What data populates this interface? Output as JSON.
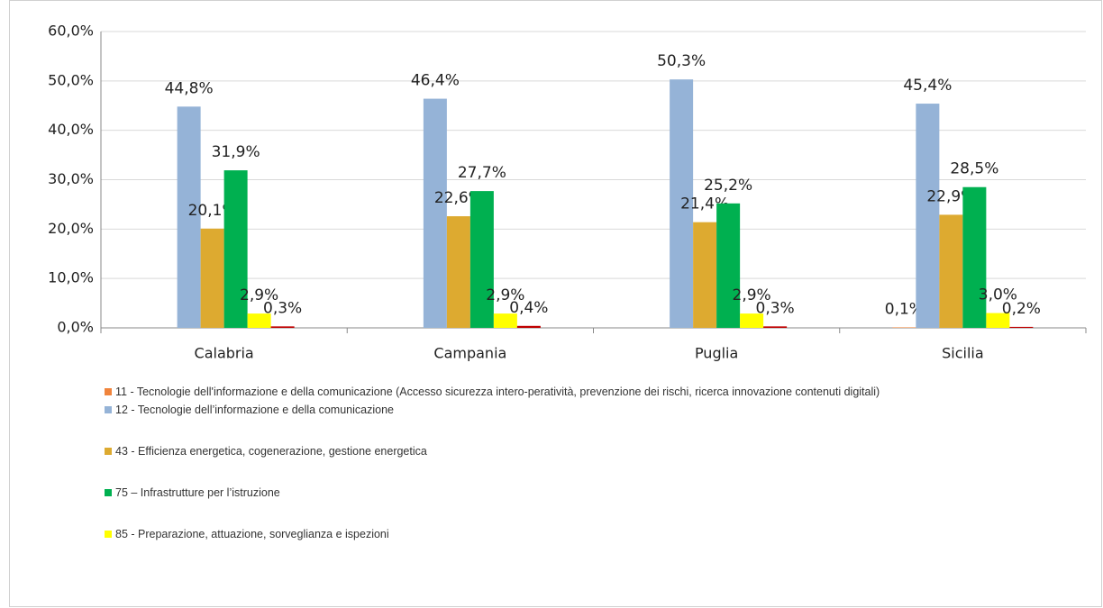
{
  "chart_data": {
    "type": "bar",
    "categories": [
      "Calabria",
      "Campania",
      "Puglia",
      "Sicilia"
    ],
    "series": [
      {
        "name": "11 - Tecnologie dell'informazione e della comunicazione (Accesso sicurezza intero-peratività, prevenzione dei rischi, ricerca innovazione contenuti digitali)",
        "color": "#f0843c",
        "values": [
          null,
          null,
          null,
          0.1
        ],
        "value_labels": [
          null,
          null,
          null,
          "0,1%"
        ]
      },
      {
        "name": "12 - Tecnologie dell’informazione e della comunicazione",
        "color": "#95b3d7",
        "values": [
          44.8,
          46.4,
          50.3,
          45.4
        ],
        "value_labels": [
          "44,8%",
          "46,4%",
          "50,3%",
          "45,4%"
        ]
      },
      {
        "name": "43 - Efficienza energetica, cogenerazione, gestione energetica",
        "color": "#ddaa30",
        "values": [
          20.1,
          22.6,
          21.4,
          22.9
        ],
        "value_labels": [
          "20,1%",
          "22,6%",
          "21,4%",
          "22,9%"
        ]
      },
      {
        "name": "75 – Infrastrutture per l’istruzione",
        "color": "#00b050",
        "values": [
          31.9,
          27.7,
          25.2,
          28.5
        ],
        "value_labels": [
          "31,9%",
          "27,7%",
          "25,2%",
          "28,5%"
        ]
      },
      {
        "name": "85 - Preparazione, attuazione, sorveglianza e ispezioni",
        "color": "#ffff00",
        "values": [
          2.9,
          2.9,
          2.9,
          3.0
        ],
        "value_labels": [
          "2,9%",
          "2,9%",
          "2,9%",
          "3,0%"
        ]
      },
      {
        "color": "#c00000",
        "values": [
          0.3,
          0.4,
          0.3,
          0.2
        ],
        "value_labels": [
          "0,3%",
          "0,4%",
          "0,3%",
          "0,2%"
        ]
      }
    ],
    "ylim": [
      0,
      60
    ],
    "yticks": [
      {
        "value": 0,
        "label": "0,0%"
      },
      {
        "value": 10,
        "label": "10,0%"
      },
      {
        "value": 20,
        "label": "20,0%"
      },
      {
        "value": 30,
        "label": "30,0%"
      },
      {
        "value": 40,
        "label": "40,0%"
      },
      {
        "value": 50,
        "label": "50,0%"
      },
      {
        "value": 60,
        "label": "60,0%"
      }
    ],
    "grid": true
  }
}
